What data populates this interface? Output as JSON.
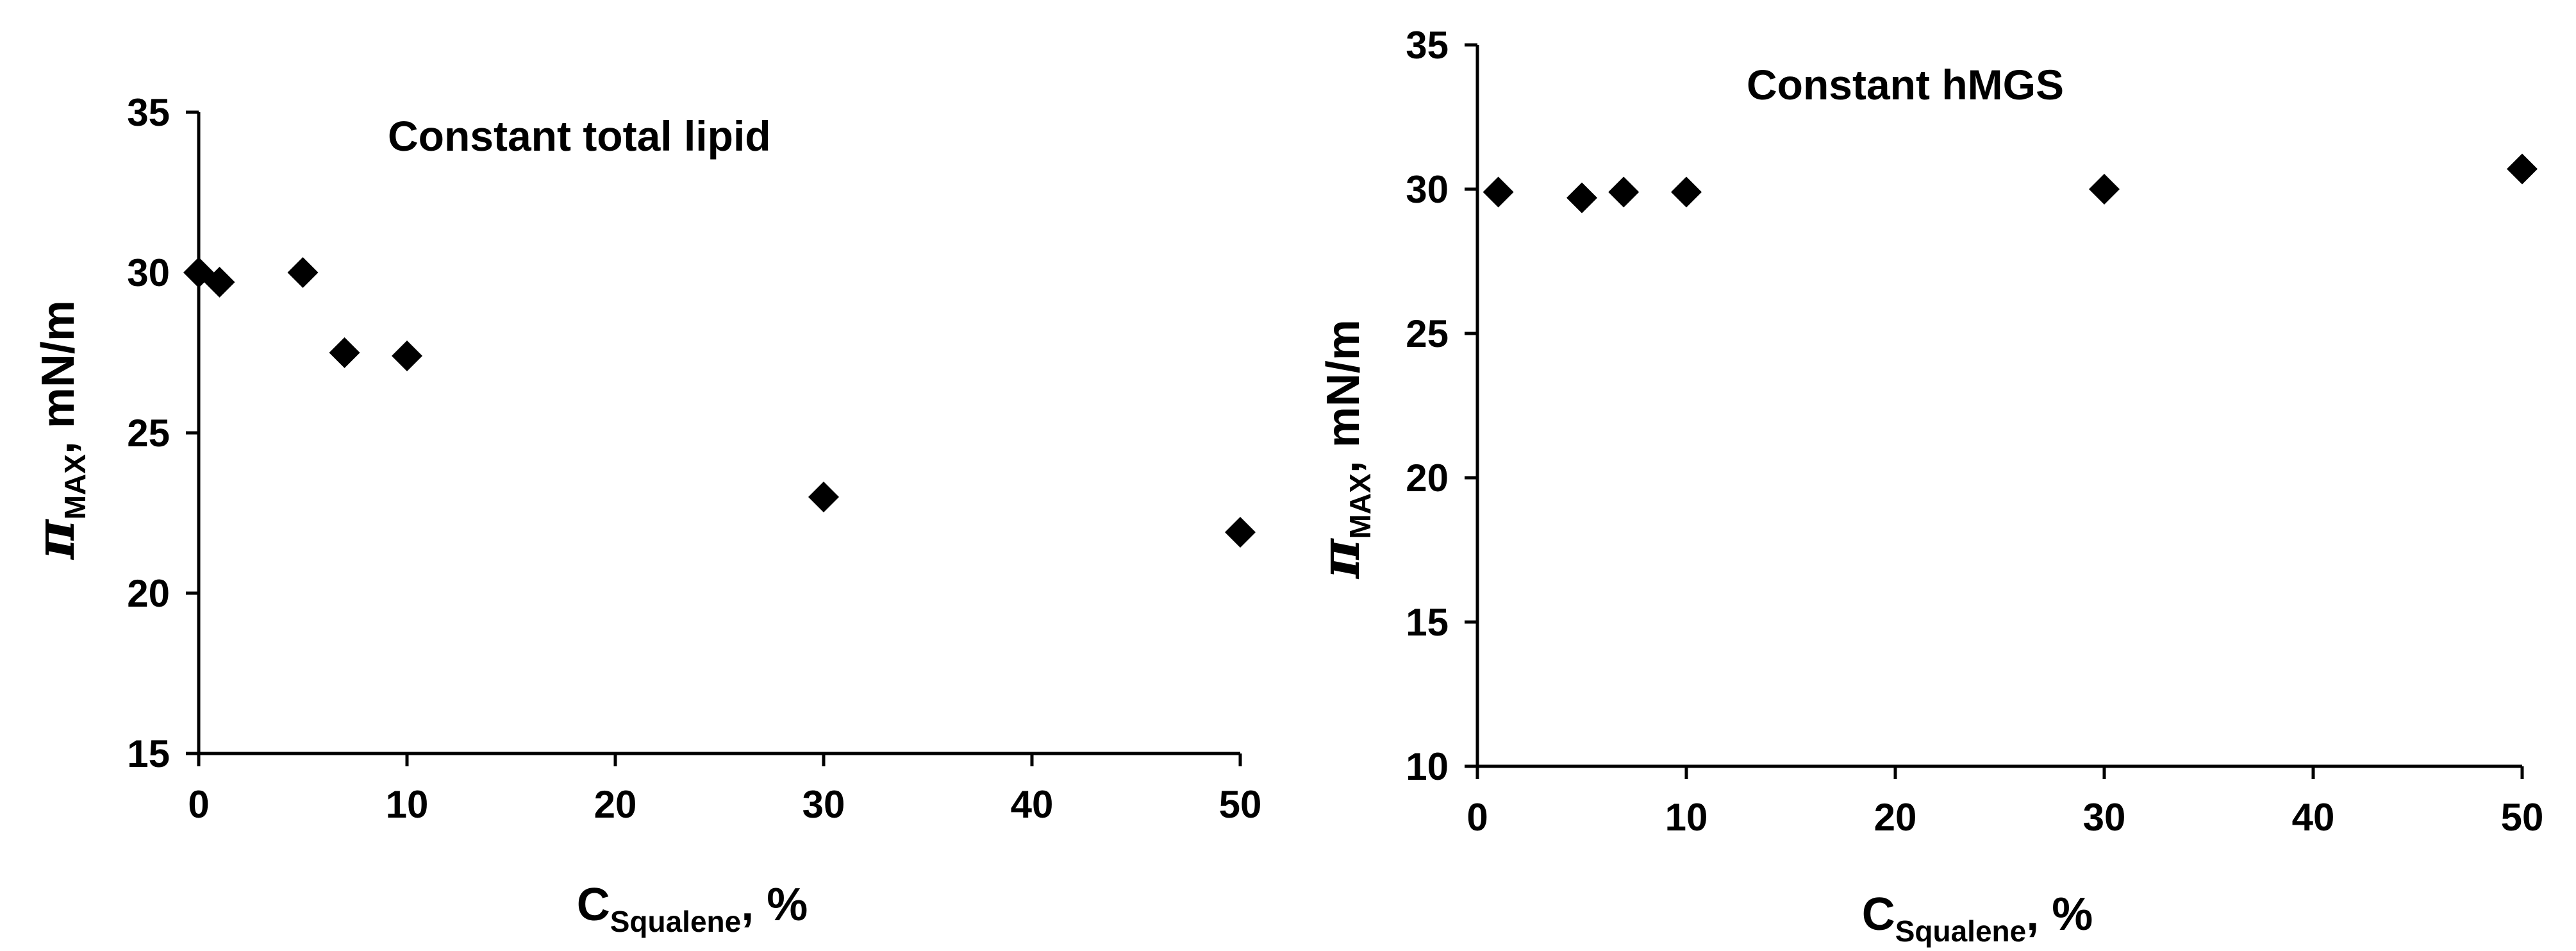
{
  "chart_data": [
    {
      "type": "scatter",
      "title": "Constant total lipid",
      "xlabel": {
        "main": "C",
        "sub": "Squalene",
        "rest": ", %"
      },
      "ylabel": {
        "symbol": "π",
        "sub": "MAX",
        "rest": ", mN/m"
      },
      "xlim": [
        0,
        50
      ],
      "ylim": [
        15,
        35
      ],
      "xticks": [
        0,
        10,
        20,
        30,
        40,
        50
      ],
      "yticks": [
        15,
        20,
        25,
        30,
        35
      ],
      "grid": false,
      "marker": "diamond",
      "marker_color": "#000000",
      "x": [
        0,
        1,
        5,
        7,
        10,
        30,
        50
      ],
      "y": [
        30.0,
        29.7,
        30.0,
        27.5,
        27.4,
        23.0,
        21.9
      ]
    },
    {
      "type": "scatter",
      "title": "Constant hMGS",
      "xlabel": {
        "main": "C",
        "sub": "Squalene",
        "rest": ", %"
      },
      "ylabel": {
        "symbol": "π",
        "sub": "MAX",
        "rest": ", mN/m"
      },
      "xlim": [
        0,
        50
      ],
      "ylim": [
        10,
        35
      ],
      "xticks": [
        0,
        10,
        20,
        30,
        40,
        50
      ],
      "yticks": [
        10,
        15,
        20,
        25,
        30,
        35
      ],
      "grid": false,
      "marker": "diamond",
      "marker_color": "#000000",
      "x": [
        1,
        5,
        7,
        10,
        30,
        50
      ],
      "y": [
        29.9,
        29.7,
        29.9,
        29.9,
        30.0,
        30.7
      ]
    }
  ]
}
